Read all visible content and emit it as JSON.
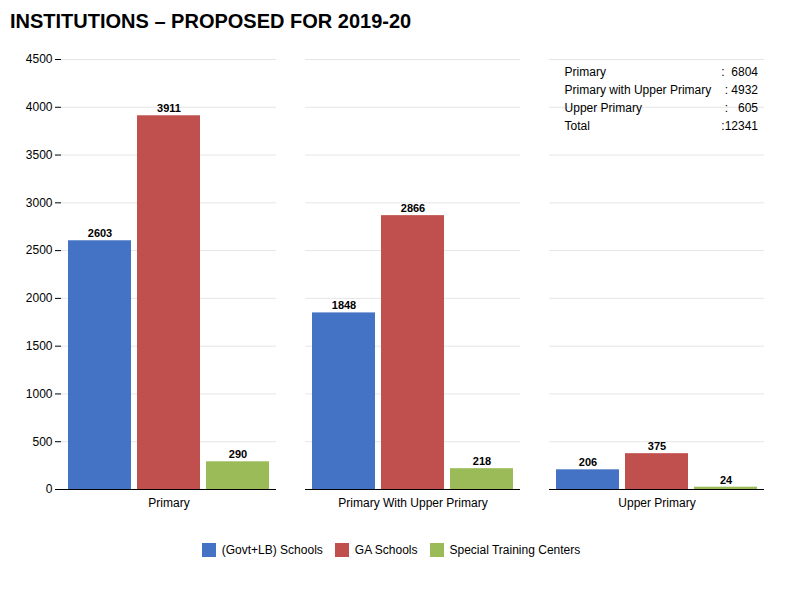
{
  "chart_data": {
    "type": "bar",
    "title": "INSTITUTIONS – PROPOSED FOR 2019-20",
    "categories": [
      "Primary",
      "Primary With Upper Primary",
      "Upper Primary"
    ],
    "series": [
      {
        "name": "(Govt+LB) Schools",
        "color": "#4472c4",
        "values": [
          2603,
          1848,
          206
        ]
      },
      {
        "name": "GA Schools",
        "color": "#c0504d",
        "values": [
          3911,
          2866,
          375
        ]
      },
      {
        "name": "Special Training Centers",
        "color": "#9bbb59",
        "values": [
          290,
          218,
          24
        ]
      }
    ],
    "ylim": [
      0,
      4500
    ],
    "yticks": [
      0,
      500,
      1000,
      1500,
      2000,
      2500,
      3000,
      3500,
      4000,
      4500
    ],
    "grid": true,
    "data_labels": true,
    "legend": "bottom",
    "annotations": [
      [
        "Primary",
        ":  6804"
      ],
      [
        "Primary with Upper Primary",
        ": 4932"
      ],
      [
        "Upper Primary",
        ":   605"
      ],
      [
        "Total",
        ":12341"
      ]
    ]
  }
}
